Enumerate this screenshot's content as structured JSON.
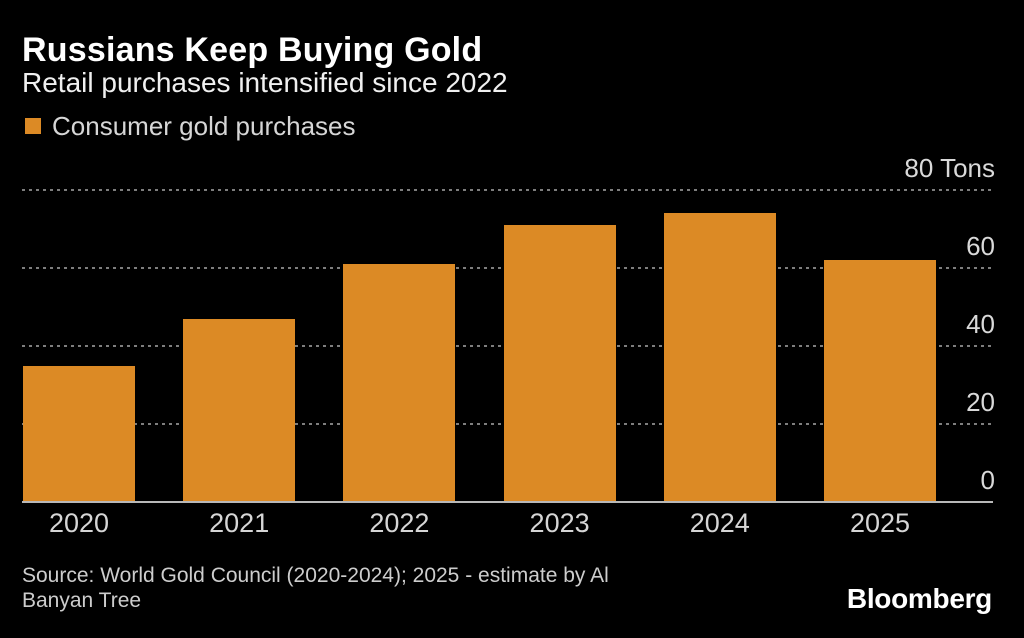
{
  "header": {
    "title": "Russians Keep Buying Gold",
    "subtitle": "Retail purchases intensified since 2022"
  },
  "legend": {
    "label": "Consumer gold purchases",
    "swatch_color": "#DC8A25"
  },
  "chart_data": {
    "type": "bar",
    "title": "Russians Keep Buying Gold",
    "subtitle": "Retail purchases intensified since 2022",
    "categories": [
      "2020",
      "2021",
      "2022",
      "2023",
      "2024",
      "2025"
    ],
    "series": [
      {
        "name": "Consumer gold purchases",
        "values": [
          35,
          47,
          61,
          71,
          74,
          62
        ]
      }
    ],
    "unit": "Tons",
    "xlabel": "",
    "ylabel": "Tons",
    "ylim": [
      0,
      80
    ],
    "y_ticks": [
      {
        "value": 0,
        "label": "0"
      },
      {
        "value": 20,
        "label": "20"
      },
      {
        "value": 40,
        "label": "40"
      },
      {
        "value": 60,
        "label": "60"
      },
      {
        "value": 80,
        "label": "80 Tons"
      }
    ],
    "grid": "horizontal-dotted",
    "legend_position": "top-left",
    "bar_color": "#DC8A25"
  },
  "source": {
    "line1": "Source: World Gold Council (2020-2024); 2025 - estimate by Al",
    "line2": "Banyan Tree"
  },
  "branding": {
    "logo": "Bloomberg"
  },
  "colors": {
    "background": "#000000",
    "bar": "#DC8A25",
    "title_text": "#ffffff",
    "subtitle_text": "#f0f0f0",
    "axis_text": "#d9d9d9",
    "gridline": "#7e7e7e",
    "baseline": "#b8b8b8",
    "source_text": "#cdcdcd"
  }
}
